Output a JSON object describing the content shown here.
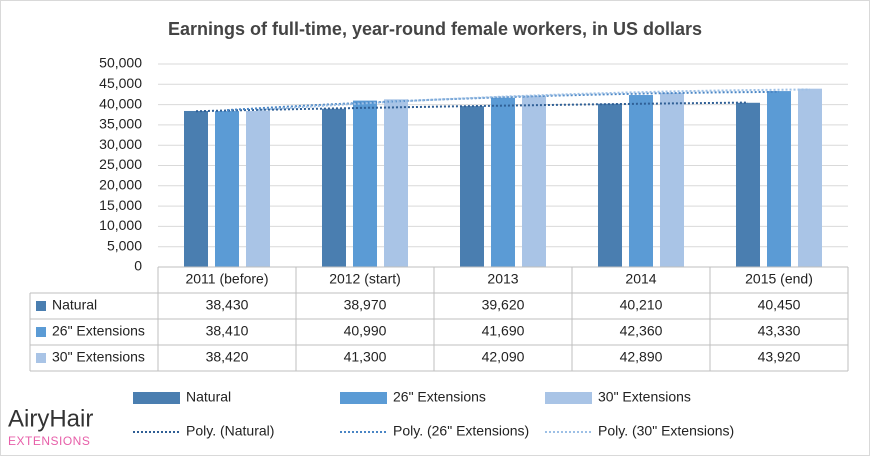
{
  "chart_data": {
    "type": "bar",
    "title": "Earnings of full-time, year-round female workers, in US dollars",
    "categories": [
      "2011 (before)",
      "2012 (start)",
      "2013",
      "2014",
      "2015 (end)"
    ],
    "series": [
      {
        "name": "Natural",
        "color": "#4a7eb0",
        "trendline_name": "Poly. (Natural)",
        "trendline_color": "#2f5f95",
        "values": [
          38430,
          38970,
          39620,
          40210,
          40450
        ],
        "value_labels": [
          "38,430",
          "38,970",
          "39,620",
          "40,210",
          "40,450"
        ]
      },
      {
        "name": "26\" Extensions",
        "color": "#5b9bd5",
        "trendline_name": "Poly. (26\" Extensions)",
        "trendline_color": "#4a86c5",
        "values": [
          38410,
          40990,
          41690,
          42360,
          43330
        ],
        "value_labels": [
          "38,410",
          "40,990",
          "41,690",
          "42,360",
          "43,330"
        ]
      },
      {
        "name": "30\" Extensions",
        "color": "#a9c4e6",
        "trendline_name": "Poly. (30\" Extensions)",
        "trendline_color": "#9dc0e6",
        "values": [
          38420,
          41300,
          42090,
          42890,
          43920
        ],
        "value_labels": [
          "38,420",
          "41,300",
          "42,090",
          "42,890",
          "43,920"
        ]
      }
    ],
    "ylim": [
      0,
      50000
    ],
    "yticks": [
      {
        "value": 50000,
        "label": "50,000"
      },
      {
        "value": 45000,
        "label": "45,000"
      },
      {
        "value": 40000,
        "label": "40,000"
      },
      {
        "value": 35000,
        "label": "35,000"
      },
      {
        "value": 30000,
        "label": "30,000"
      },
      {
        "value": 25000,
        "label": "25,000"
      },
      {
        "value": 20000,
        "label": "20,000"
      },
      {
        "value": 15000,
        "label": "15,000"
      },
      {
        "value": 10000,
        "label": "10,000"
      },
      {
        "value": 5000,
        "label": "5,000"
      },
      0
    ],
    "grid": true
  },
  "logo": {
    "name": "AiryHair",
    "tagline": "EXTENSIONS"
  }
}
